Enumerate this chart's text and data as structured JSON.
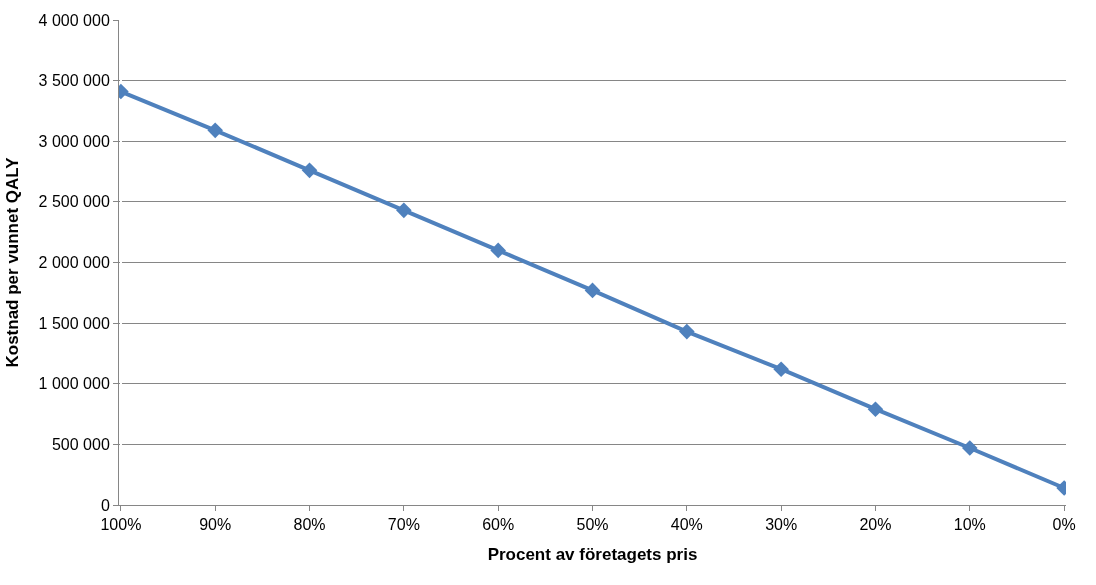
{
  "chart_data": {
    "type": "line",
    "xlabel": "Procent av företagets pris",
    "ylabel": "Kostnad per vunnet QALY",
    "categories": [
      "100%",
      "90%",
      "80%",
      "70%",
      "60%",
      "50%",
      "40%",
      "30%",
      "20%",
      "10%",
      "0%"
    ],
    "series": [
      {
        "color": "#4f81bd",
        "values": [
          3410000,
          3090000,
          2760000,
          2430000,
          2100000,
          1770000,
          1430000,
          1120000,
          790000,
          470000,
          140000
        ]
      }
    ],
    "ylim": [
      0,
      4000000
    ],
    "yticks": [
      0,
      {
        "value": 500000,
        "label": "500 000"
      },
      {
        "value": 1000000,
        "label": "1 000 000"
      },
      {
        "value": 1500000,
        "label": "1 500 000"
      },
      {
        "value": 2000000,
        "label": "2 000 000"
      },
      {
        "value": 2500000,
        "label": "2 500 000"
      },
      {
        "value": 3000000,
        "label": "3 000 000"
      },
      {
        "value": 3500000,
        "label": "3 500 000"
      },
      {
        "value": 4000000,
        "label": "4 000 000"
      }
    ],
    "grid": "y",
    "marker": "diamond",
    "line_style": "solid"
  }
}
